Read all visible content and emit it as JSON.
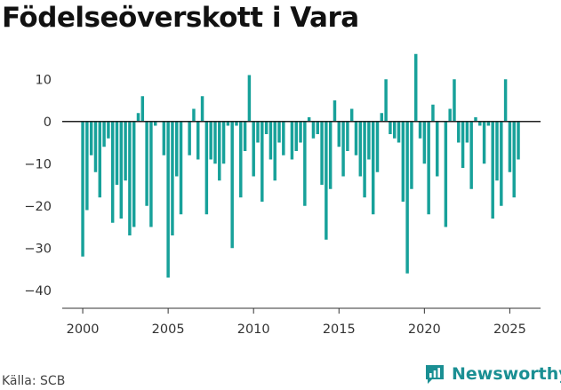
{
  "title": "Födelseöverskott i Vara",
  "source": "Källa: SCB",
  "brand": {
    "name": "Newsworthy",
    "icon": "newsworthy-logo-icon",
    "color": "#1a8f93"
  },
  "chart_data": {
    "type": "bar",
    "title": "Födelseöverskott i Vara",
    "bar_color": "#17a19a",
    "x_start": 2000.0,
    "x_step": 0.25,
    "xlim": [
      1998.8,
      2026.8
    ],
    "ylim": [
      -43,
      17
    ],
    "xticks": [
      2000,
      2005,
      2010,
      2015,
      2020,
      2025
    ],
    "yticks": [
      10,
      0,
      -10,
      -20,
      -30,
      -40
    ],
    "ytick_labels": [
      "10",
      "0",
      "−10",
      "−20",
      "−30",
      "−40"
    ],
    "grid": false,
    "values": [
      -32,
      -21,
      -8,
      -12,
      -18,
      -6,
      -4,
      -24,
      -15,
      -23,
      -14,
      -27,
      -25,
      2,
      6,
      -20,
      -25,
      -1,
      0,
      -8,
      -37,
      -27,
      -13,
      -22,
      0,
      -8,
      3,
      -9,
      6,
      -22,
      -9,
      -10,
      -14,
      -10,
      -1,
      -30,
      -1,
      -18,
      -7,
      11,
      -13,
      -5,
      -19,
      -3,
      -9,
      -14,
      -5,
      -8,
      0,
      -9,
      -7,
      -5,
      -20,
      1,
      -4,
      -3,
      -15,
      -28,
      -16,
      5,
      -6,
      -13,
      -7,
      3,
      -8,
      -13,
      -18,
      -9,
      -22,
      -12,
      2,
      10,
      -3,
      -4,
      -5,
      -19,
      -36,
      -16,
      16,
      -4,
      -10,
      -22,
      4,
      -13,
      0,
      -25,
      3,
      10,
      -5,
      -11,
      -5,
      -16,
      1,
      -1,
      -10,
      -1,
      -23,
      -14,
      -20,
      10,
      -12,
      -18,
      -9
    ]
  }
}
